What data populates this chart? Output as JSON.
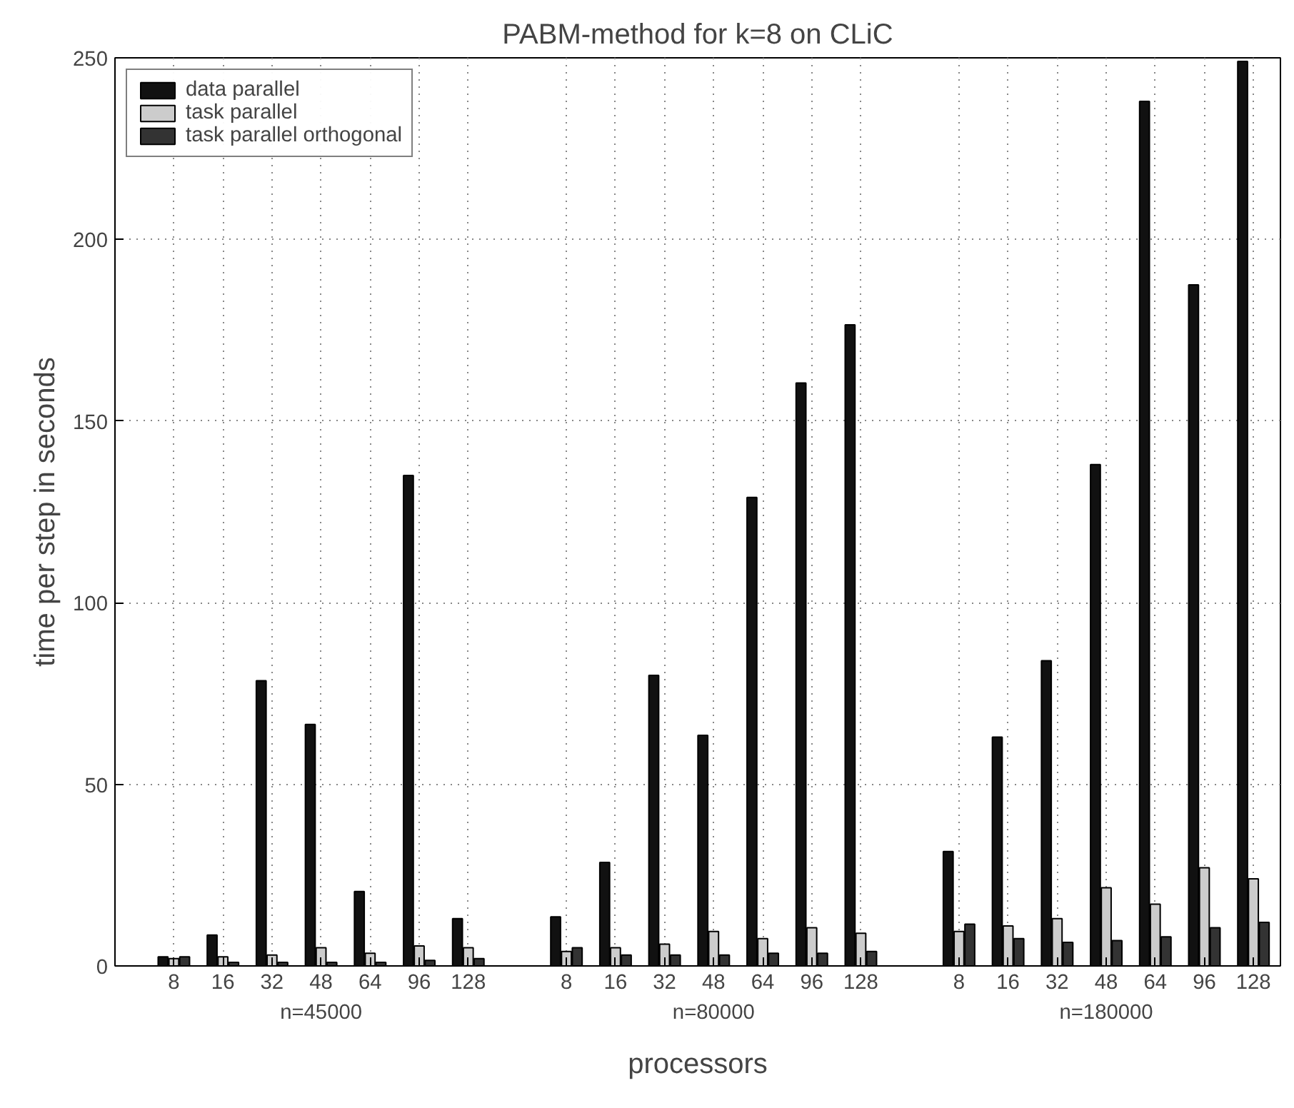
{
  "chart_data": {
    "type": "bar",
    "title": "PABM-method for k=8 on CLiC",
    "xlabel": "processors",
    "ylabel": "time per step in seconds",
    "categories": [
      "8",
      "16",
      "32",
      "48",
      "64",
      "96",
      "128",
      null,
      "8",
      "16",
      "32",
      "48",
      "64",
      "96",
      "128",
      null,
      "8",
      "16",
      "32",
      "48",
      "64",
      "96",
      "128"
    ],
    "series": [
      {
        "name": "data parallel",
        "color": "#111111",
        "values": [
          2.5,
          8.5,
          78.5,
          66.5,
          20.5,
          135,
          13,
          null,
          13.5,
          28.5,
          80,
          63.5,
          129,
          160.5,
          176.5,
          null,
          31.5,
          63,
          84,
          138,
          238,
          187.5,
          249
        ]
      },
      {
        "name": "task parallel",
        "color": "#cccccc",
        "values": [
          2,
          2.5,
          3,
          5,
          3.5,
          5.5,
          5,
          null,
          4,
          5,
          6,
          9.5,
          7.5,
          10.5,
          9,
          null,
          9.5,
          11,
          13,
          21.5,
          17,
          27,
          24
        ]
      },
      {
        "name": "task parallel orthogonal",
        "color": "#333333",
        "values": [
          2.5,
          1,
          1,
          1,
          1,
          1.5,
          2,
          null,
          5,
          3,
          3,
          3,
          3.5,
          3.5,
          4,
          null,
          11.5,
          7.5,
          6.5,
          7,
          8,
          10.5,
          12
        ]
      }
    ],
    "annotations": [
      "n=45000",
      "n=80000",
      "n=180000"
    ],
    "ylim": [
      0,
      250
    ],
    "yticks": [
      0,
      50,
      100,
      150,
      200,
      250
    ],
    "grid": true,
    "legend": "top left"
  }
}
